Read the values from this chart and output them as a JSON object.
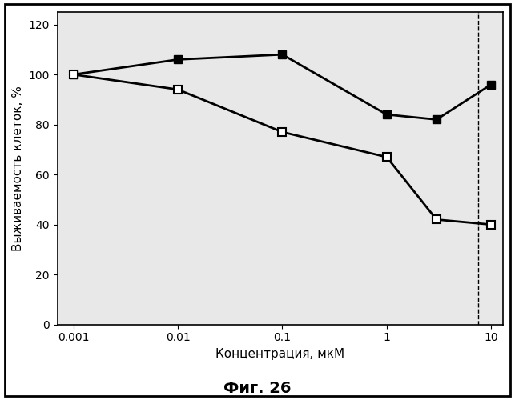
{
  "x": [
    0.001,
    0.01,
    0.1,
    1,
    3,
    10
  ],
  "series_filled": [
    100,
    106,
    108,
    84,
    82,
    96
  ],
  "series_open": [
    100,
    94,
    77,
    67,
    42,
    40
  ],
  "xlabel": "Концентрация, мкМ",
  "ylabel": "Выживаемость клеток, %",
  "caption": "Фиг. 26",
  "ylim": [
    0,
    125
  ],
  "yticks": [
    0,
    20,
    40,
    60,
    80,
    100,
    120
  ],
  "dashed_vline_x": 7.5,
  "line_color": "#000000",
  "plot_bg_color": "#e8e8e8",
  "fig_bg_color": "#ffffff",
  "filled_marker": "s",
  "open_marker": "s",
  "linewidth": 2.0,
  "markersize": 7
}
